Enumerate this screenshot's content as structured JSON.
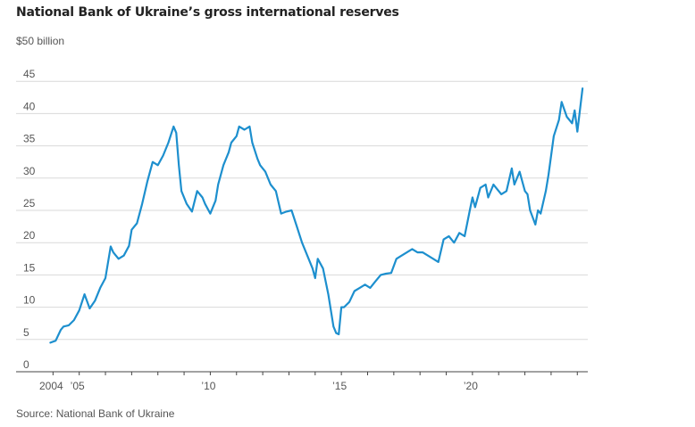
{
  "colors": {
    "line": "#1d8fce",
    "grid": "#d9d9d9",
    "axis": "#444444",
    "text": "#555555"
  },
  "chart_data": {
    "type": "line",
    "title": "National Bank of Ukraine’s gross international reserves",
    "ylabel": "$50 billion",
    "xlabel": "",
    "source": "Source: National Bank of Ukraine",
    "ylim": [
      0,
      50
    ],
    "xlim": [
      2003.0,
      2024.4
    ],
    "grid": true,
    "legend": "none",
    "y_ticks": [
      {
        "value": 45,
        "label": "45"
      },
      {
        "value": 40,
        "label": "40"
      },
      {
        "value": 35,
        "label": "35"
      },
      {
        "value": 30,
        "label": "30"
      },
      {
        "value": 25,
        "label": "25"
      },
      {
        "value": 20,
        "label": "20"
      },
      {
        "value": 15,
        "label": "15"
      },
      {
        "value": 10,
        "label": "10"
      },
      {
        "value": 5,
        "label": "5"
      },
      {
        "value": 0,
        "label": "0"
      }
    ],
    "x_ticks": [
      {
        "value": 2004,
        "label": "2004"
      },
      {
        "value": 2005,
        "label": "’05"
      },
      {
        "value": 2010,
        "label": "’10"
      },
      {
        "value": 2015,
        "label": "’15"
      },
      {
        "value": 2020,
        "label": "’20"
      }
    ],
    "series": [
      {
        "x": [
          2003.9,
          2004.1,
          2004.3,
          2004.4,
          2004.6,
          2004.8,
          2005.0,
          2005.2,
          2005.4,
          2005.6,
          2005.8,
          2006.0,
          2006.2,
          2006.3,
          2006.5,
          2006.7,
          2006.9,
          2007.0,
          2007.2,
          2007.4,
          2007.6,
          2007.8,
          2008.0,
          2008.2,
          2008.4,
          2008.6,
          2008.7,
          2008.8,
          2008.9,
          2009.1,
          2009.3,
          2009.5,
          2009.7,
          2009.8,
          2010.0,
          2010.2,
          2010.3,
          2010.5,
          2010.7,
          2010.8,
          2011.0,
          2011.1,
          2011.3,
          2011.5,
          2011.6,
          2011.8,
          2011.9,
          2012.1,
          2012.3,
          2012.5,
          2012.7,
          2012.9,
          2013.1,
          2013.3,
          2013.5,
          2013.7,
          2013.9,
          2014.0,
          2014.1,
          2014.3,
          2014.5,
          2014.7,
          2014.8,
          2014.9,
          2015.0,
          2015.1,
          2015.3,
          2015.5,
          2015.7,
          2015.9,
          2016.1,
          2016.3,
          2016.5,
          2016.7,
          2016.9,
          2017.1,
          2017.3,
          2017.5,
          2017.7,
          2017.9,
          2018.1,
          2018.3,
          2018.5,
          2018.7,
          2018.9,
          2019.1,
          2019.3,
          2019.5,
          2019.7,
          2019.9,
          2020.0,
          2020.1,
          2020.3,
          2020.5,
          2020.6,
          2020.8,
          2020.9,
          2021.1,
          2021.3,
          2021.5,
          2021.6,
          2021.8,
          2021.9,
          2022.0,
          2022.1,
          2022.2,
          2022.4,
          2022.5,
          2022.6,
          2022.8,
          2022.9,
          2023.1,
          2023.3,
          2023.4,
          2023.6,
          2023.8,
          2023.9,
          2024.0,
          2024.2
        ],
        "values": [
          4.5,
          4.8,
          6.5,
          7.0,
          7.2,
          8.0,
          9.5,
          12.0,
          9.8,
          11.0,
          13.0,
          14.5,
          19.4,
          18.5,
          17.5,
          18.0,
          19.5,
          22.0,
          23.0,
          26.0,
          29.5,
          32.5,
          32.0,
          33.5,
          35.5,
          38.0,
          37.0,
          32.0,
          28.0,
          26.0,
          24.8,
          28.0,
          27.0,
          26.0,
          24.5,
          26.5,
          29.0,
          32.0,
          34.0,
          35.5,
          36.5,
          38.0,
          37.5,
          38.0,
          35.5,
          33.0,
          32.0,
          31.0,
          29.0,
          28.0,
          24.5,
          24.8,
          25.0,
          22.5,
          20.0,
          18.0,
          16.0,
          14.5,
          17.5,
          16.0,
          12.0,
          7.0,
          6.0,
          5.8,
          10.0,
          10.0,
          10.8,
          12.5,
          13.0,
          13.5,
          13.0,
          14.0,
          15.0,
          15.2,
          15.3,
          17.5,
          18.0,
          18.5,
          19.0,
          18.5,
          18.5,
          18.0,
          17.5,
          17.0,
          20.5,
          21.0,
          20.0,
          21.5,
          21.0,
          25.0,
          27.0,
          25.5,
          28.5,
          29.0,
          27.0,
          29.0,
          28.5,
          27.5,
          28.0,
          31.5,
          29.0,
          31.0,
          29.5,
          28.0,
          27.5,
          25.0,
          22.8,
          25.0,
          24.5,
          28.0,
          30.5,
          36.5,
          39.0,
          41.8,
          39.5,
          38.5,
          40.5,
          37.2,
          43.9
        ]
      }
    ]
  }
}
